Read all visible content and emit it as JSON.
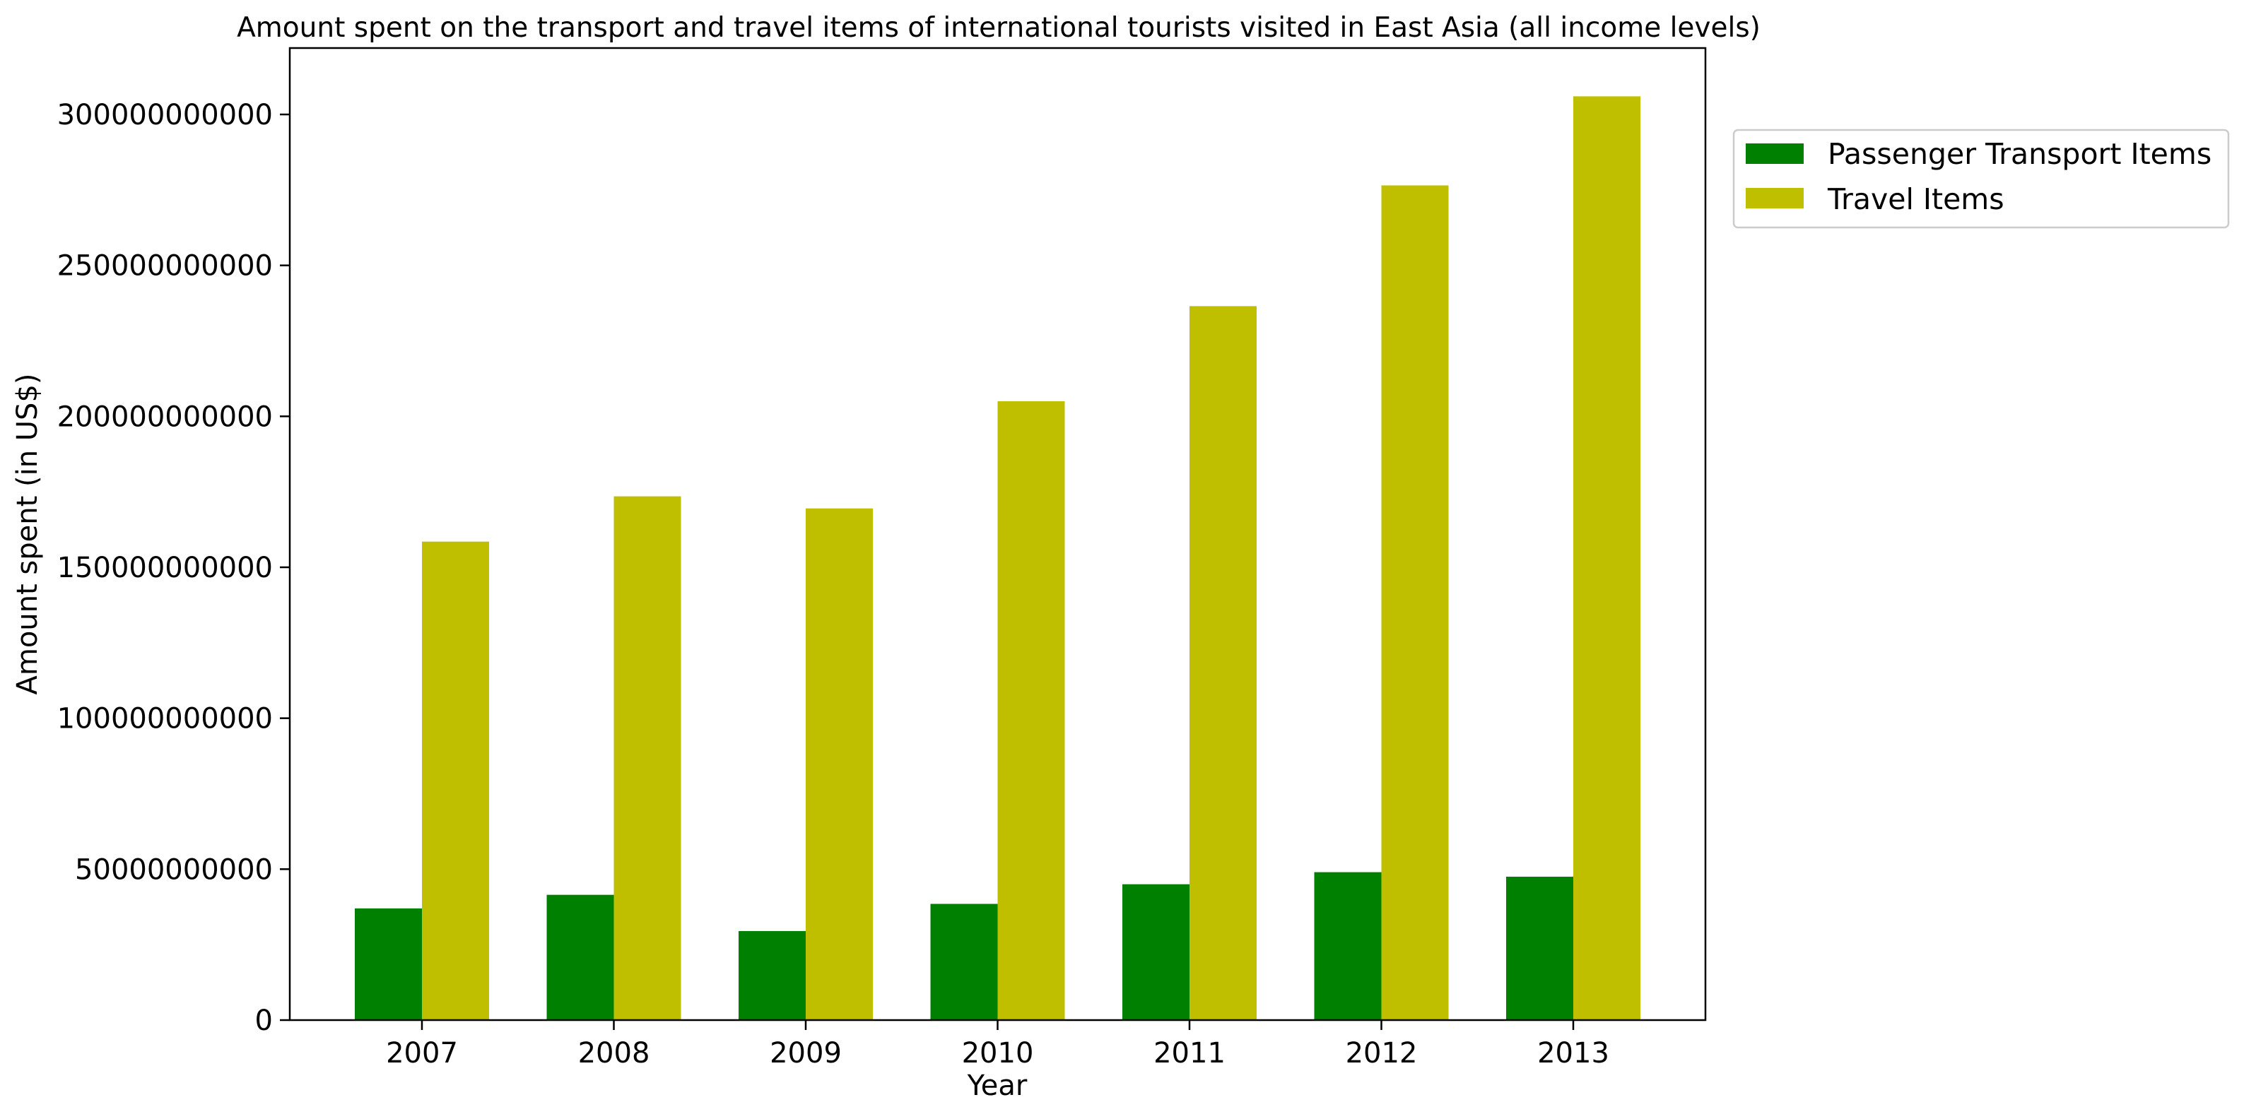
{
  "chart_data": {
    "type": "bar",
    "title": "Amount spent on the transport and travel items of international tourists visited in East Asia (all income levels)",
    "xlabel": "Year",
    "ylabel": "Amount spent (in US$)",
    "categories": [
      "2007",
      "2008",
      "2009",
      "2010",
      "2011",
      "2012",
      "2013"
    ],
    "series": [
      {
        "name": "Passenger Transport Items",
        "color": "#008000",
        "values": [
          37000000000,
          41500000000,
          29500000000,
          38500000000,
          45000000000,
          49000000000,
          47500000000
        ]
      },
      {
        "name": "Travel Items",
        "color": "#bfbf00",
        "values": [
          158500000000,
          173500000000,
          169500000000,
          205000000000,
          236500000000,
          276500000000,
          306000000000
        ]
      }
    ],
    "ylim": [
      0,
      322000000000
    ],
    "yticks": [
      0,
      50000000000,
      100000000000,
      150000000000,
      200000000000,
      250000000000,
      300000000000
    ],
    "ytick_labels": [
      "0",
      "50000000000",
      "100000000000",
      "150000000000",
      "200000000000",
      "250000000000",
      "300000000000"
    ],
    "grid": false,
    "legend_position": "outside-top-right"
  }
}
